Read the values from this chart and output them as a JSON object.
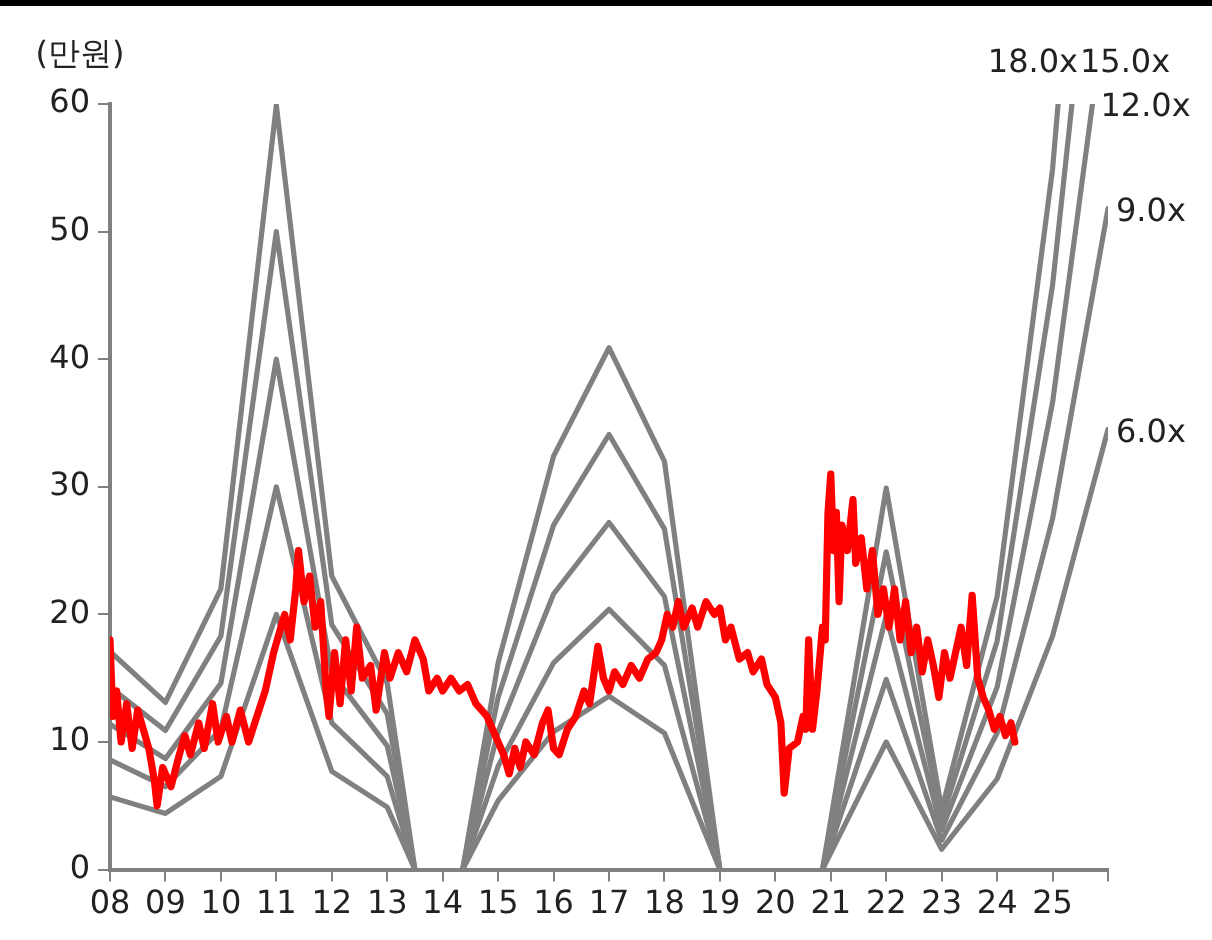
{
  "chart_data": {
    "type": "line",
    "ylabel": "(만원)",
    "xlim": [
      2008,
      2026
    ],
    "xticks": [
      {
        "value": 2008,
        "label": "08"
      },
      {
        "value": 2009,
        "label": "09"
      },
      {
        "value": 2010,
        "label": "10"
      },
      {
        "value": 2011,
        "label": "11"
      },
      {
        "value": 2012,
        "label": "12"
      },
      {
        "value": 2013,
        "label": "13"
      },
      {
        "value": 2014,
        "label": "14"
      },
      {
        "value": 2015,
        "label": "15"
      },
      {
        "value": 2016,
        "label": "16"
      },
      {
        "value": 2017,
        "label": "17"
      },
      {
        "value": 2018,
        "label": "18"
      },
      {
        "value": 2019,
        "label": "19"
      },
      {
        "value": 2020,
        "label": "20"
      },
      {
        "value": 2021,
        "label": "21"
      },
      {
        "value": 2022,
        "label": "22"
      },
      {
        "value": 2023,
        "label": "23"
      },
      {
        "value": 2024,
        "label": "24"
      },
      {
        "value": 2025,
        "label": "25"
      },
      {
        "value": 2026,
        "label": null
      }
    ],
    "ylim": [
      0,
      60
    ],
    "yticks": [
      0,
      10,
      20,
      30,
      40,
      50,
      60
    ],
    "grid": false,
    "legend": false,
    "marker": "none",
    "line_style": "solid",
    "series": [
      {
        "color": "#ff0000",
        "x": [
          2008.0,
          2008.05,
          2008.12,
          2008.2,
          2008.3,
          2008.4,
          2008.5,
          2008.6,
          2008.7,
          2008.8,
          2008.85,
          2008.95,
          2009.1,
          2009.25,
          2009.35,
          2009.45,
          2009.6,
          2009.7,
          2009.85,
          2009.95,
          2010.1,
          2010.2,
          2010.35,
          2010.5,
          2010.65,
          2010.8,
          2010.95,
          2011.05,
          2011.15,
          2011.25,
          2011.35,
          2011.4,
          2011.5,
          2011.6,
          2011.7,
          2011.8,
          2011.9,
          2011.95,
          2012.05,
          2012.15,
          2012.25,
          2012.35,
          2012.45,
          2012.55,
          2012.7,
          2012.8,
          2012.95,
          2013.05,
          2013.2,
          2013.35,
          2013.5,
          2013.65,
          2013.75,
          2013.9,
          2014.0,
          2014.15,
          2014.3,
          2014.45,
          2014.6,
          2014.8,
          2015.0,
          2015.1,
          2015.2,
          2015.3,
          2015.4,
          2015.5,
          2015.65,
          2015.8,
          2015.9,
          2016.0,
          2016.1,
          2016.25,
          2016.4,
          2016.55,
          2016.65,
          2016.75,
          2016.8,
          2016.9,
          2017.0,
          2017.1,
          2017.25,
          2017.4,
          2017.55,
          2017.7,
          2017.85,
          2017.95,
          2018.05,
          2018.15,
          2018.25,
          2018.35,
          2018.5,
          2018.6,
          2018.75,
          2018.9,
          2019.0,
          2019.1,
          2019.2,
          2019.35,
          2019.5,
          2019.6,
          2019.75,
          2019.85,
          2020.0,
          2020.1,
          2020.16,
          2020.25,
          2020.4,
          2020.5,
          2020.55,
          2020.6,
          2020.67,
          2020.75,
          2020.85,
          2020.9,
          2020.95,
          2021.0,
          2021.05,
          2021.1,
          2021.15,
          2021.2,
          2021.3,
          2021.4,
          2021.45,
          2021.55,
          2021.65,
          2021.75,
          2021.85,
          2021.95,
          2022.05,
          2022.15,
          2022.25,
          2022.35,
          2022.45,
          2022.55,
          2022.65,
          2022.75,
          2022.85,
          2022.95,
          2023.05,
          2023.15,
          2023.25,
          2023.35,
          2023.45,
          2023.55,
          2023.65,
          2023.75,
          2023.85,
          2023.95,
          2024.05,
          2024.15,
          2024.25,
          2024.32
        ],
        "values": [
          18,
          12,
          14,
          10,
          13,
          9.5,
          12.5,
          11,
          9.5,
          7,
          5,
          8,
          6.5,
          9,
          10.5,
          9,
          11.5,
          9.5,
          13,
          10,
          12,
          10,
          12.5,
          10,
          12,
          14,
          17,
          18.5,
          20,
          18,
          22,
          25,
          21,
          23,
          19,
          21,
          14,
          12,
          17,
          13,
          18,
          14,
          19,
          15,
          16,
          12.5,
          17,
          15,
          17,
          15.5,
          18,
          16.5,
          14,
          15,
          14,
          15,
          14,
          14.5,
          13,
          12,
          10,
          9,
          7.5,
          9.5,
          8,
          10,
          9,
          11.5,
          12.5,
          9.5,
          9,
          11,
          12,
          14,
          13,
          16,
          17.5,
          15,
          14,
          15.5,
          14.5,
          16,
          15,
          16.5,
          17,
          18,
          20,
          19,
          21,
          19,
          20.5,
          19,
          21,
          20,
          20.5,
          18,
          19,
          16.5,
          17,
          15.5,
          16.5,
          14.5,
          13.5,
          11.5,
          6,
          9.5,
          10,
          12,
          11,
          18,
          11,
          14,
          19,
          18,
          28,
          31,
          25,
          28,
          21,
          27,
          25,
          29,
          24,
          26,
          22,
          25,
          20,
          22,
          19,
          22,
          18,
          21,
          17,
          19,
          15.5,
          18,
          16,
          13.5,
          17,
          15,
          17,
          19,
          16,
          21.5,
          15,
          13.5,
          12.5,
          11,
          12,
          10.5,
          11.5,
          10
        ]
      },
      {
        "name": "6.0x",
        "color": "#808080",
        "x": [
          2008,
          2009,
          2010,
          2011,
          2012,
          2013,
          2013.5,
          2014,
          2014.36,
          2015,
          2016,
          2017,
          2018,
          2019,
          2020,
          2020.85,
          2022,
          2023,
          2024,
          2025,
          2026
        ],
        "values": [
          5.7,
          4.4,
          7.3,
          20.0,
          7.7,
          4.9,
          0,
          null,
          0,
          5.4,
          10.8,
          13.6,
          10.7,
          0,
          null,
          0,
          10.0,
          1.6,
          7.1,
          18.3,
          34.5
        ]
      },
      {
        "name": "9.0x",
        "color": "#808080",
        "x": [
          2008,
          2009,
          2010,
          2011,
          2012,
          2013,
          2013.5,
          2014,
          2014.36,
          2015,
          2016,
          2017,
          2018,
          2019,
          2020,
          2020.85,
          2022,
          2023,
          2024,
          2025,
          2026
        ],
        "values": [
          8.6,
          6.5,
          11.0,
          30.0,
          11.5,
          7.3,
          0,
          null,
          0,
          8.1,
          16.2,
          20.4,
          16.0,
          0,
          null,
          0,
          14.9,
          2.3,
          10.7,
          27.5,
          51.8
        ]
      },
      {
        "name": "12.0x",
        "color": "#808080",
        "x": [
          2008,
          2009,
          2010,
          2011,
          2012,
          2013,
          2013.5,
          2014,
          2014.36,
          2015,
          2016,
          2017,
          2018,
          2019,
          2020,
          2020.85,
          2022,
          2023,
          2024,
          2025,
          2025.72
        ],
        "values": [
          11.4,
          8.7,
          14.6,
          40.0,
          15.4,
          9.7,
          0,
          null,
          0,
          10.8,
          21.6,
          27.2,
          21.4,
          0,
          null,
          0,
          19.9,
          3.1,
          14.3,
          36.6,
          60
        ]
      },
      {
        "name": "15.0x",
        "color": "#808080",
        "x": [
          2008,
          2009,
          2010,
          2011,
          2012,
          2013,
          2013.5,
          2014,
          2014.36,
          2015,
          2016,
          2017,
          2018,
          2019,
          2020,
          2020.85,
          2022,
          2023,
          2024,
          2025,
          2025.35
        ],
        "values": [
          14.3,
          10.9,
          18.3,
          50.0,
          19.2,
          12.2,
          0,
          null,
          0,
          13.5,
          27.0,
          34.1,
          26.7,
          0,
          null,
          0,
          24.9,
          3.9,
          17.9,
          45.8,
          60
        ]
      },
      {
        "name": "18.0x",
        "color": "#808080",
        "x": [
          2008,
          2009,
          2010,
          2011,
          2012,
          2013,
          2013.5,
          2014,
          2014.36,
          2015,
          2016,
          2017,
          2018,
          2019,
          2020,
          2020.85,
          2022,
          2023,
          2024,
          2025,
          2025.1
        ],
        "values": [
          17.1,
          13.1,
          22.0,
          59.9,
          23.0,
          14.6,
          0,
          null,
          0,
          16.2,
          32.4,
          40.9,
          32.0,
          0,
          null,
          0,
          29.9,
          4.7,
          21.4,
          54.9,
          60
        ]
      }
    ]
  }
}
